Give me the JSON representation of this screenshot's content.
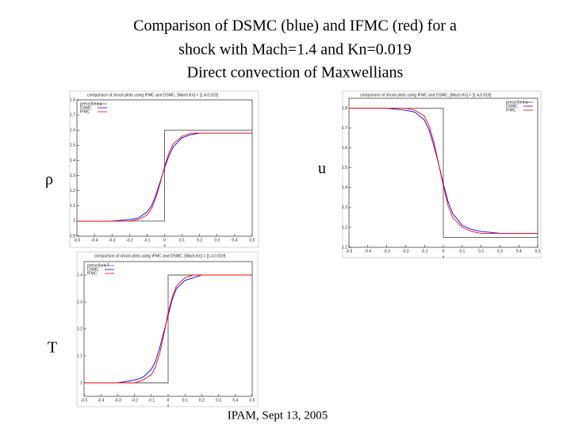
{
  "slide": {
    "title": [
      "Comparison of DSMC (blue) and IFMC (red) for a",
      "shock with Mach=1.4 and Kn=0.019",
      "Direct convection of Maxwellians"
    ],
    "footer": "IPAM, Sept 13, 2005"
  },
  "chart_data": [
    {
      "type": "line",
      "title": "comparison of shock plots using IFMC and DSMC, [Mach,Kn] = [1.4,0.019]",
      "ylabel": "ρ",
      "xlabel": "x",
      "x": [
        -0.5,
        -0.4,
        -0.3,
        -0.2,
        -0.15,
        -0.1,
        -0.075,
        -0.05,
        -0.025,
        0,
        0.025,
        0.05,
        0.1,
        0.15,
        0.2,
        0.3,
        0.4,
        0.5
      ],
      "series": [
        {
          "name": "prescribed ρ",
          "color": "#555555",
          "x": [
            -0.5,
            0,
            0,
            0.5
          ],
          "values": [
            1,
            1,
            1.6,
            1.6
          ]
        },
        {
          "name": "DSMC",
          "color": "#0000ff",
          "values": [
            1.0,
            1.0,
            1.0,
            1.01,
            1.02,
            1.06,
            1.1,
            1.17,
            1.26,
            1.35,
            1.43,
            1.49,
            1.55,
            1.57,
            1.58,
            1.58,
            1.58,
            1.58
          ]
        },
        {
          "name": "IFMC",
          "color": "#ff0000",
          "values": [
            1.0,
            1.0,
            1.0,
            1.0,
            1.01,
            1.04,
            1.08,
            1.15,
            1.25,
            1.36,
            1.45,
            1.51,
            1.56,
            1.58,
            1.58,
            1.58,
            1.58,
            1.58
          ]
        }
      ],
      "xlim": [
        -0.5,
        0.5
      ],
      "xticks": [
        -0.5,
        -0.4,
        -0.3,
        -0.2,
        -0.1,
        0,
        0.1,
        0.2,
        0.3,
        0.4,
        0.5
      ],
      "ylim": [
        0.9,
        1.8
      ],
      "yticks": [
        0.9,
        1,
        1.1,
        1.2,
        1.3,
        1.4,
        1.5,
        1.6,
        1.7,
        1.8
      ],
      "legend": "upper left"
    },
    {
      "type": "line",
      "title": "comparison of shock plots using IFMC and DSMC, [Mach,Kn] = [1.4,0.019]",
      "ylabel": "u",
      "xlabel": "x",
      "x": [
        -0.5,
        -0.4,
        -0.3,
        -0.2,
        -0.15,
        -0.1,
        -0.075,
        -0.05,
        -0.025,
        0,
        0.025,
        0.05,
        0.1,
        0.15,
        0.2,
        0.3,
        0.4,
        0.5
      ],
      "series": [
        {
          "name": "prescribed u",
          "color": "#555555",
          "x": [
            -0.5,
            0,
            0,
            0.5
          ],
          "values": [
            1.8,
            1.8,
            1.15,
            1.15
          ]
        },
        {
          "name": "DSMC",
          "color": "#0000ff",
          "values": [
            1.8,
            1.8,
            1.8,
            1.79,
            1.78,
            1.74,
            1.69,
            1.61,
            1.52,
            1.42,
            1.33,
            1.27,
            1.21,
            1.19,
            1.18,
            1.17,
            1.17,
            1.17
          ]
        },
        {
          "name": "IFMC",
          "color": "#ff0000",
          "values": [
            1.8,
            1.8,
            1.8,
            1.8,
            1.79,
            1.76,
            1.71,
            1.63,
            1.52,
            1.41,
            1.31,
            1.25,
            1.2,
            1.18,
            1.17,
            1.17,
            1.17,
            1.17
          ]
        }
      ],
      "xlim": [
        -0.5,
        0.5
      ],
      "xticks": [
        -0.5,
        -0.4,
        -0.3,
        -0.2,
        -0.1,
        0,
        0.1,
        0.2,
        0.3,
        0.4,
        0.5
      ],
      "ylim": [
        1.1,
        1.85
      ],
      "yticks": [
        1.1,
        1.2,
        1.3,
        1.4,
        1.5,
        1.6,
        1.7,
        1.8
      ],
      "legend": "upper right"
    },
    {
      "type": "line",
      "title": "comparison of shock plots using IFMC and DSMC, [Mach,Kn] = [1.4,0.019]",
      "ylabel": "T",
      "xlabel": "x",
      "x": [
        -0.5,
        -0.4,
        -0.3,
        -0.2,
        -0.15,
        -0.1,
        -0.075,
        -0.05,
        -0.025,
        0,
        0.025,
        0.05,
        0.1,
        0.15,
        0.2,
        0.3,
        0.4,
        0.5
      ],
      "series": [
        {
          "name": "prescribed T",
          "color": "#555555",
          "x": [
            -0.5,
            0,
            0,
            0.5
          ],
          "values": [
            1,
            1,
            1.4,
            1.4
          ]
        },
        {
          "name": "DSMC",
          "color": "#0000ff",
          "values": [
            1.0,
            1.0,
            1.0,
            1.01,
            1.02,
            1.05,
            1.08,
            1.13,
            1.19,
            1.25,
            1.31,
            1.35,
            1.38,
            1.39,
            1.4,
            1.4,
            1.4,
            1.4
          ]
        },
        {
          "name": "IFMC",
          "color": "#ff0000",
          "values": [
            1.0,
            1.0,
            1.0,
            1.0,
            1.01,
            1.03,
            1.06,
            1.11,
            1.18,
            1.26,
            1.32,
            1.36,
            1.39,
            1.4,
            1.4,
            1.4,
            1.4,
            1.4
          ]
        }
      ],
      "xlim": [
        -0.5,
        0.5
      ],
      "xticks": [
        -0.5,
        -0.4,
        -0.3,
        -0.2,
        -0.1,
        0,
        0.1,
        0.2,
        0.3,
        0.4,
        0.5
      ],
      "ylim": [
        0.95,
        1.45
      ],
      "yticks": [
        1,
        1.1,
        1.2,
        1.3,
        1.4
      ],
      "legend": "upper left"
    }
  ]
}
